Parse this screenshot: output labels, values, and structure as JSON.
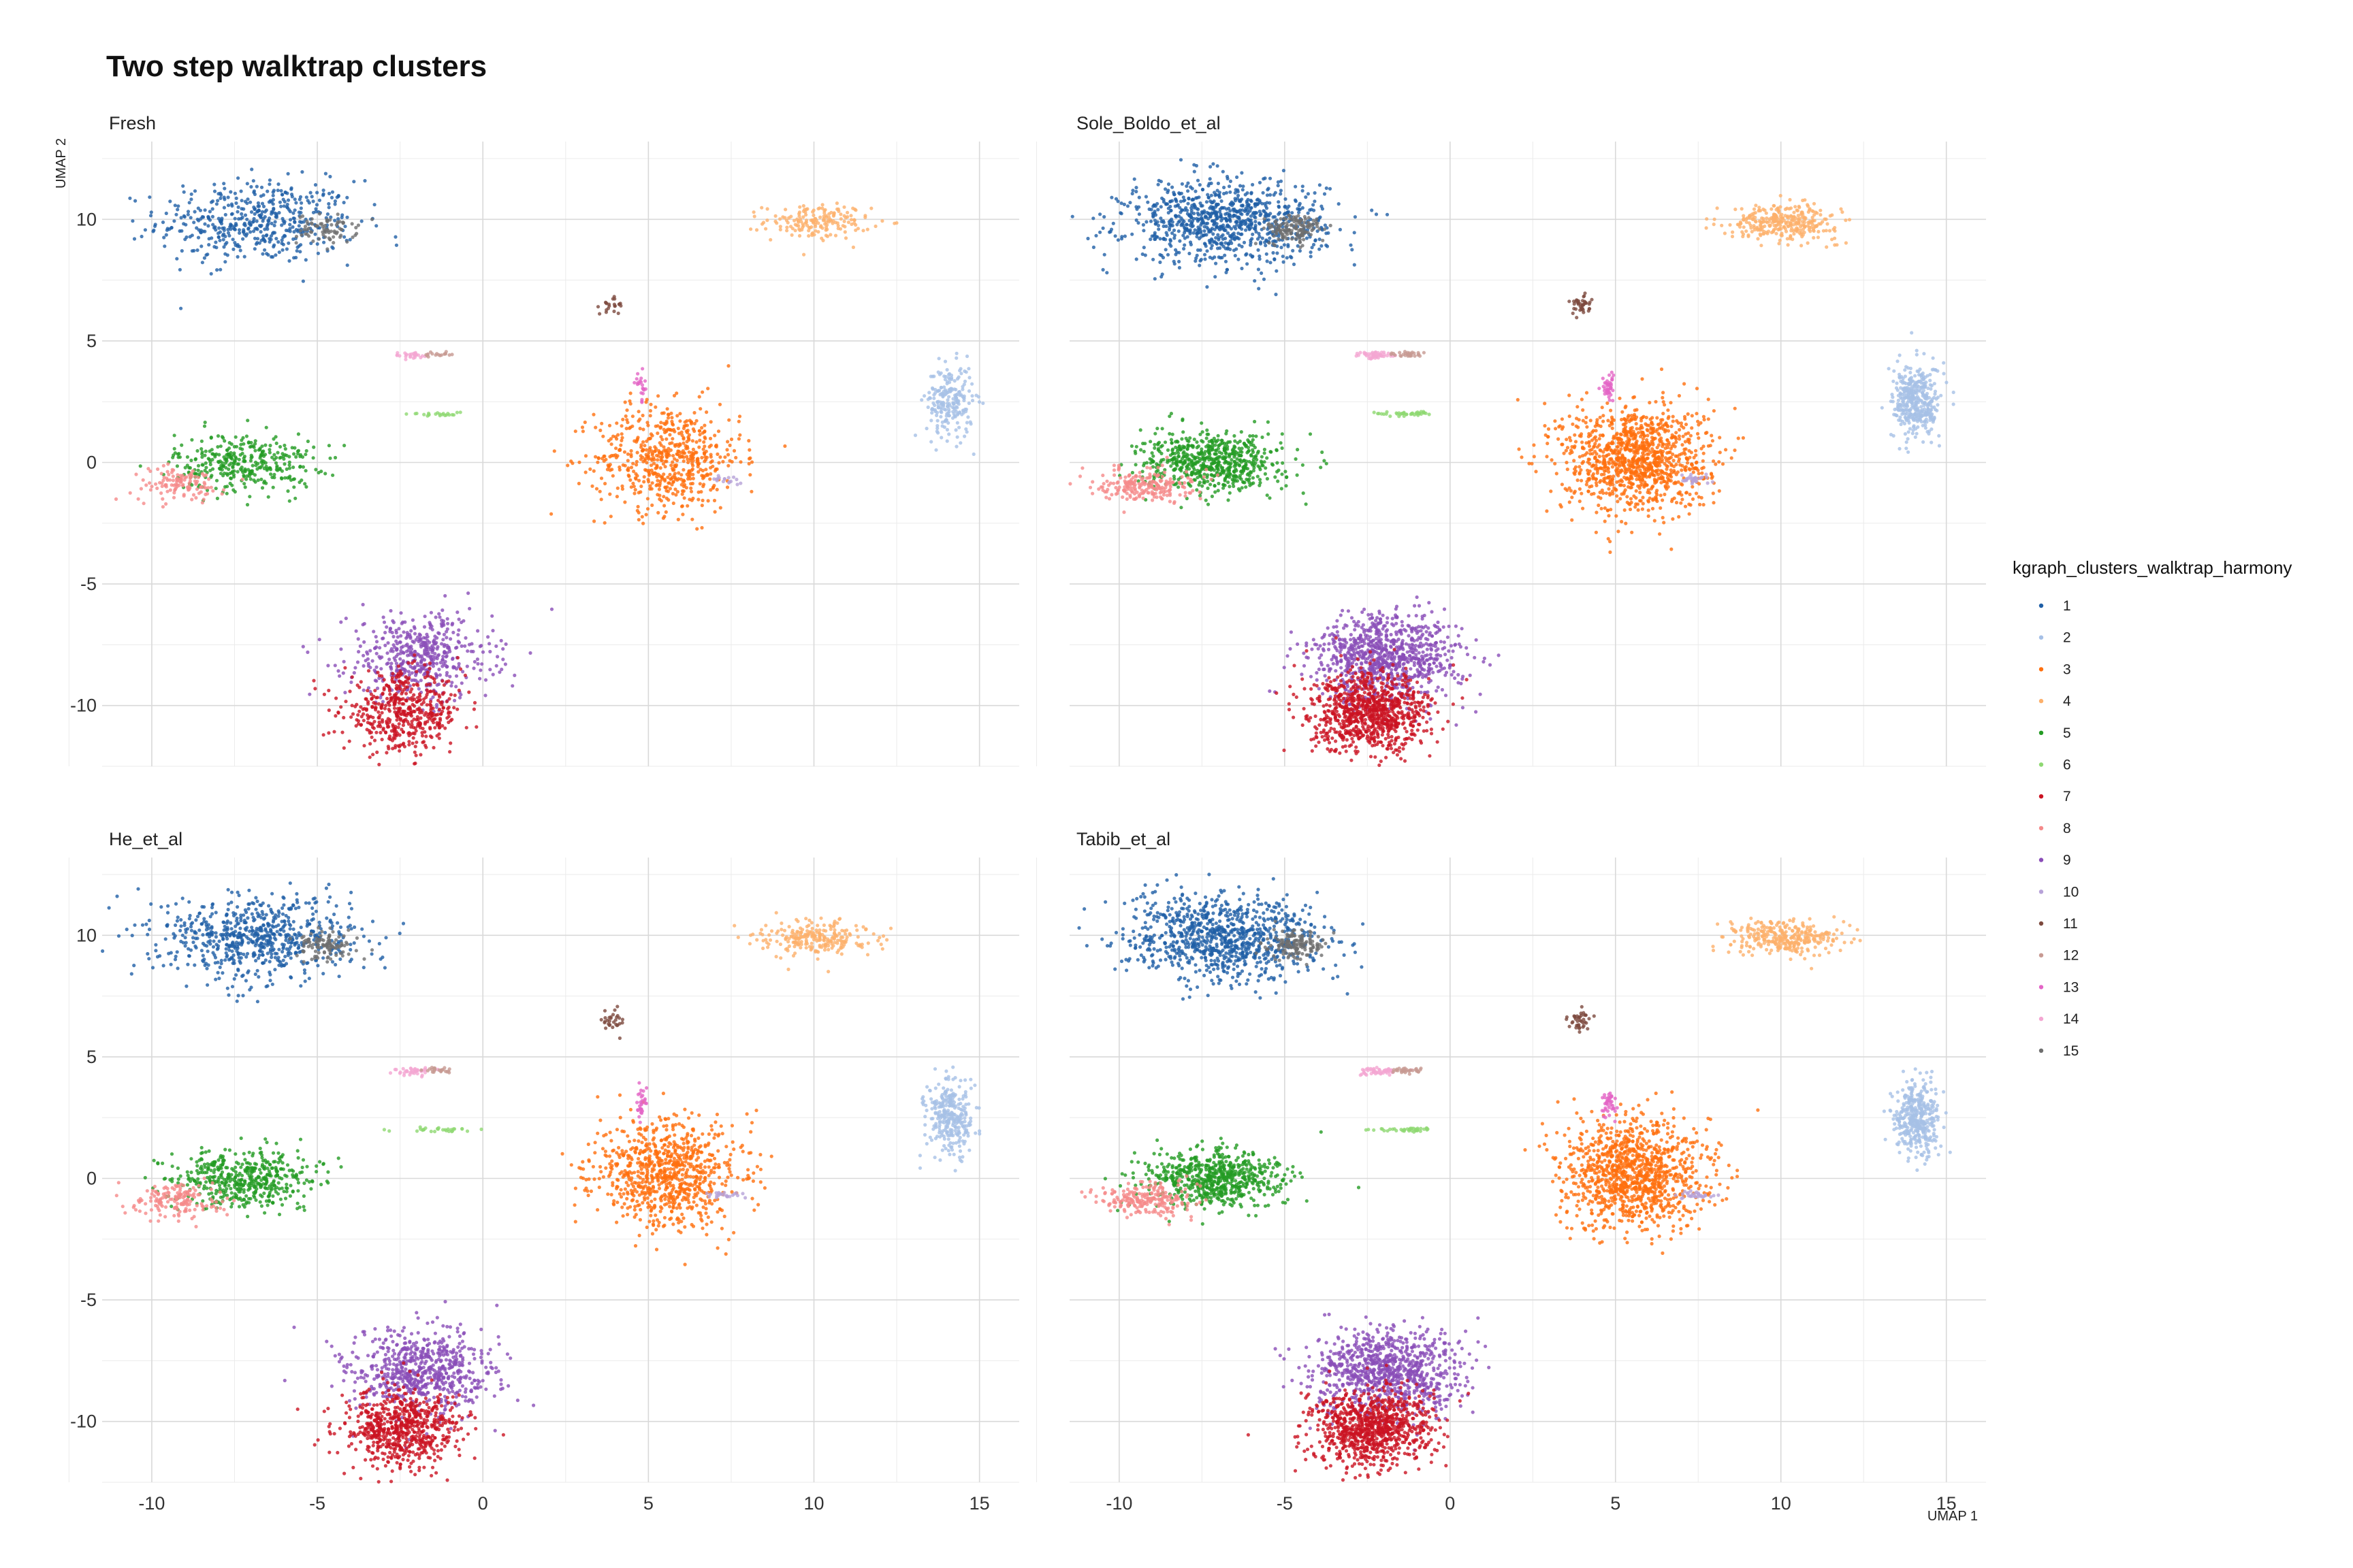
{
  "chart_data": {
    "type": "scatter",
    "title": "Two step walktrap clusters",
    "xlabel": "UMAP 1",
    "ylabel": "UMAP 2",
    "xlim": [
      -11.5,
      16.2
    ],
    "ylim": [
      -12.5,
      13.2
    ],
    "x_ticks": [
      -10,
      -5,
      0,
      5,
      10,
      15
    ],
    "y_ticks": [
      -10,
      -5,
      0,
      5,
      10
    ],
    "x_tick_labels": [
      "-10",
      "-5",
      "0",
      "5",
      "10",
      "15"
    ],
    "y_tick_labels": [
      "-10",
      "-5",
      "0",
      "5",
      "10"
    ],
    "grid": true,
    "legend": {
      "title": "kgraph_clusters_walktrap_harmony",
      "position": "right",
      "entries": [
        {
          "label": "1",
          "color": "#1F5FA6"
        },
        {
          "label": "2",
          "color": "#A6C0E6"
        },
        {
          "label": "3",
          "color": "#FF6F0E"
        },
        {
          "label": "4",
          "color": "#FDB06B"
        },
        {
          "label": "5",
          "color": "#239B23"
        },
        {
          "label": "6",
          "color": "#8ED872"
        },
        {
          "label": "7",
          "color": "#CB1322"
        },
        {
          "label": "8",
          "color": "#F58A8A"
        },
        {
          "label": "9",
          "color": "#8A4DB8"
        },
        {
          "label": "10",
          "color": "#B7A2D8"
        },
        {
          "label": "11",
          "color": "#7D4A3E"
        },
        {
          "label": "12",
          "color": "#C79A92"
        },
        {
          "label": "13",
          "color": "#E365C6"
        },
        {
          "label": "14",
          "color": "#F4A6D2"
        },
        {
          "label": "15",
          "color": "#6E6E6E"
        }
      ]
    },
    "panels": [
      {
        "name": "Fresh",
        "density": 0.55
      },
      {
        "name": "Sole_Boldo_et_al",
        "density": 1.0
      },
      {
        "name": "He_et_al",
        "density": 0.75
      },
      {
        "name": "Tabib_et_al",
        "density": 1.0
      }
    ],
    "cluster_regions": [
      {
        "cluster": "1",
        "x": -6.8,
        "y": 9.9,
        "sx": 1.5,
        "sy": 0.85,
        "n": 900
      },
      {
        "cluster": "15",
        "x": -4.7,
        "y": 9.6,
        "sx": 0.45,
        "sy": 0.3,
        "n": 140
      },
      {
        "cluster": "4",
        "x": 10.1,
        "y": 9.9,
        "sx": 0.8,
        "sy": 0.35,
        "n": 320
      },
      {
        "cluster": "11",
        "x": 3.9,
        "y": 6.5,
        "sx": 0.18,
        "sy": 0.2,
        "n": 40
      },
      {
        "cluster": "3",
        "x": 5.6,
        "y": 0.2,
        "sx": 1.1,
        "sy": 1.1,
        "n": 1100
      },
      {
        "cluster": "13",
        "x": 4.8,
        "y": 3.1,
        "sx": 0.1,
        "sy": 0.3,
        "n": 40
      },
      {
        "cluster": "14",
        "x": -2.2,
        "y": 4.4,
        "sx": 0.3,
        "sy": 0.07,
        "n": 50
      },
      {
        "cluster": "12",
        "x": -1.3,
        "y": 4.45,
        "sx": 0.25,
        "sy": 0.06,
        "n": 30
      },
      {
        "cluster": "6",
        "x": -1.4,
        "y": 2.0,
        "sx": 0.45,
        "sy": 0.05,
        "n": 40
      },
      {
        "cluster": "2",
        "x": 14.1,
        "y": 2.5,
        "sx": 0.35,
        "sy": 0.75,
        "n": 400
      },
      {
        "cluster": "5",
        "x": -7.2,
        "y": 0.0,
        "sx": 1.05,
        "sy": 0.6,
        "n": 650
      },
      {
        "cluster": "8",
        "x": -9.2,
        "y": -0.9,
        "sx": 0.7,
        "sy": 0.35,
        "n": 220
      },
      {
        "cluster": "10",
        "x": 7.4,
        "y": -0.7,
        "sx": 0.25,
        "sy": 0.08,
        "n": 30
      },
      {
        "cluster": "9",
        "x": -1.9,
        "y": -8.0,
        "sx": 1.1,
        "sy": 0.9,
        "n": 900
      },
      {
        "cluster": "7",
        "x": -2.4,
        "y": -10.3,
        "sx": 0.9,
        "sy": 0.8,
        "n": 900
      }
    ]
  }
}
